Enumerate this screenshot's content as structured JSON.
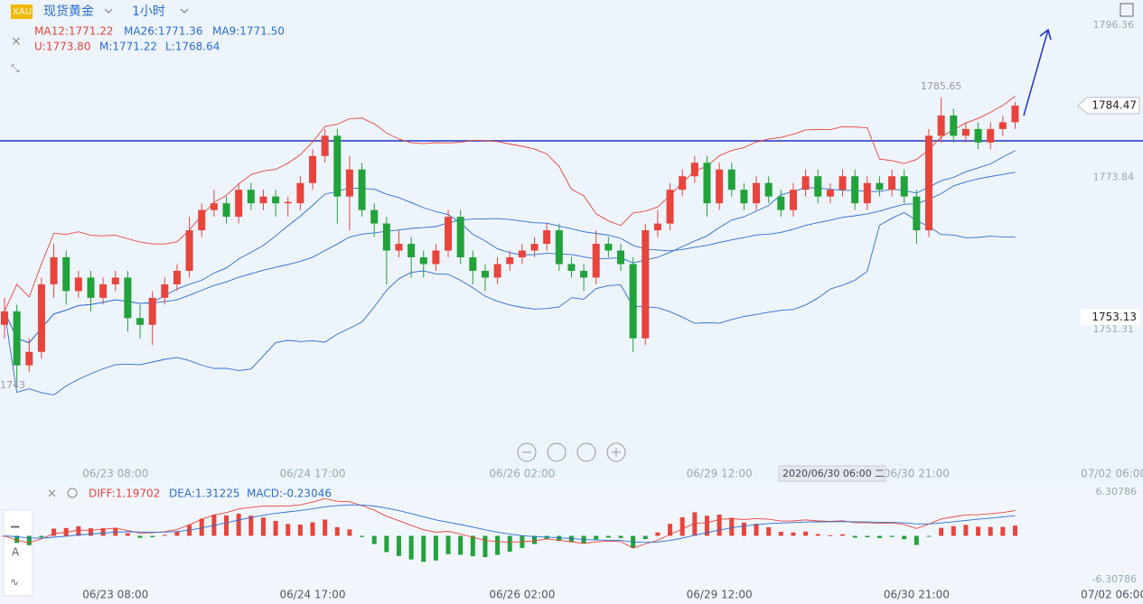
{
  "chart_data": {
    "type": "candlestick",
    "symbol": "XAU",
    "title": "现货黄金",
    "period": "1小时",
    "legend_ma": [
      "MA12:1771.22",
      "MA26:1771.36",
      "MA9:1771.50"
    ],
    "legend_boll": [
      "U:1773.80",
      "M:1771.22",
      "L:1768.64"
    ],
    "macd_legend": [
      "DIFF:1.19702",
      "DEA:1.31225",
      "MACD:-0.23046"
    ],
    "up_color": "#e8443c",
    "down_color": "#21a23a",
    "ylim": [
      1731.25,
      1800.1
    ],
    "yticks": [
      1796.36,
      1773.84,
      1751.31
    ],
    "high_label": 1785.65,
    "low_label": 1743,
    "last_price": 1784.47,
    "cursor_price": 1753.13,
    "cursor_time": "2020/06/30 06:00 二",
    "macd_ylim": [
      -6.30786,
      6.30786
    ],
    "macd_yticks": [
      6.30786,
      -6.30786
    ],
    "categories": [
      null,
      null,
      null,
      null,
      null,
      null,
      null,
      null,
      null,
      "06/23 08:00",
      null,
      null,
      null,
      null,
      null,
      null,
      null,
      null,
      null,
      null,
      null,
      null,
      null,
      null,
      null,
      "06/24 17:00",
      null,
      null,
      null,
      null,
      null,
      null,
      null,
      null,
      null,
      null,
      null,
      null,
      null,
      null,
      null,
      null,
      "06/26 02:00",
      null,
      null,
      null,
      null,
      null,
      null,
      null,
      null,
      null,
      null,
      null,
      null,
      null,
      null,
      null,
      "06/29 12:00",
      null,
      null,
      null,
      null,
      null,
      null,
      null,
      null,
      null,
      null,
      null,
      null,
      null,
      null,
      null,
      "06/30 21:00",
      null,
      null,
      null,
      null,
      null,
      null,
      null,
      null,
      null,
      null,
      null,
      null,
      null,
      null,
      null,
      "07/02 06:00"
    ],
    "candles": [
      [
        1752,
        1756,
        1750,
        1754
      ],
      [
        1754,
        1755,
        1743,
        1746
      ],
      [
        1746,
        1750,
        1745,
        1748
      ],
      [
        1748,
        1759,
        1747,
        1758
      ],
      [
        1758,
        1764,
        1756,
        1762
      ],
      [
        1762,
        1763,
        1755,
        1757
      ],
      [
        1757,
        1760,
        1756,
        1759
      ],
      [
        1759,
        1760,
        1754,
        1756
      ],
      [
        1756,
        1759,
        1755,
        1758
      ],
      [
        1758,
        1760,
        1757,
        1759
      ],
      [
        1759,
        1760,
        1751,
        1753
      ],
      [
        1753,
        1755,
        1750,
        1752
      ],
      [
        1752,
        1757,
        1749,
        1756
      ],
      [
        1756,
        1759,
        1755,
        1758
      ],
      [
        1758,
        1761,
        1757,
        1760
      ],
      [
        1760,
        1768,
        1759,
        1766
      ],
      [
        1766,
        1770,
        1765,
        1769
      ],
      [
        1769,
        1772,
        1768,
        1770
      ],
      [
        1770,
        1771,
        1767,
        1768
      ],
      [
        1768,
        1773,
        1767,
        1772
      ],
      [
        1772,
        1773,
        1769,
        1770
      ],
      [
        1770,
        1772,
        1769,
        1771
      ],
      [
        1771,
        1772,
        1768,
        1770
      ],
      [
        1770,
        1771,
        1768,
        1770.2
      ],
      [
        1770,
        1774,
        1769,
        1773
      ],
      [
        1773,
        1778,
        1772,
        1777
      ],
      [
        1777,
        1781,
        1776,
        1780
      ],
      [
        1780,
        1781,
        1767,
        1771
      ],
      [
        1771,
        1777,
        1766,
        1775
      ],
      [
        1775,
        1776,
        1768,
        1769
      ],
      [
        1769,
        1770,
        1765,
        1767
      ],
      [
        1767,
        1768,
        1758,
        1763
      ],
      [
        1763,
        1766,
        1762,
        1764
      ],
      [
        1764,
        1765,
        1759,
        1762
      ],
      [
        1762,
        1763,
        1759,
        1761
      ],
      [
        1761,
        1764,
        1760,
        1763
      ],
      [
        1763,
        1769,
        1762,
        1768
      ],
      [
        1768,
        1769,
        1761,
        1762
      ],
      [
        1762,
        1763,
        1758,
        1760
      ],
      [
        1760,
        1761,
        1757,
        1759
      ],
      [
        1759,
        1762,
        1758,
        1761
      ],
      [
        1761,
        1763,
        1760,
        1762
      ],
      [
        1762,
        1764,
        1761,
        1763
      ],
      [
        1763,
        1765,
        1762,
        1764
      ],
      [
        1764,
        1767,
        1763,
        1766
      ],
      [
        1766,
        1767,
        1760,
        1761
      ],
      [
        1761,
        1762,
        1759,
        1760
      ],
      [
        1760,
        1761,
        1757,
        1759
      ],
      [
        1759,
        1766,
        1758,
        1764
      ],
      [
        1764,
        1765,
        1762,
        1763
      ],
      [
        1763,
        1764,
        1760,
        1761
      ],
      [
        1761,
        1762,
        1748,
        1750
      ],
      [
        1750,
        1767,
        1749,
        1766
      ],
      [
        1766,
        1769,
        1765,
        1767
      ],
      [
        1767,
        1773,
        1766,
        1772
      ],
      [
        1772,
        1775,
        1771,
        1774
      ],
      [
        1774,
        1777,
        1773,
        1776
      ],
      [
        1776,
        1777,
        1768,
        1770
      ],
      [
        1770,
        1776,
        1769,
        1775
      ],
      [
        1775,
        1776,
        1771,
        1772
      ],
      [
        1772,
        1773,
        1769,
        1770
      ],
      [
        1770,
        1774,
        1769,
        1773
      ],
      [
        1773,
        1774,
        1770,
        1771
      ],
      [
        1771,
        1772,
        1768,
        1769
      ],
      [
        1769,
        1773,
        1768,
        1772
      ],
      [
        1772,
        1775,
        1771,
        1774
      ],
      [
        1774,
        1775,
        1770,
        1771
      ],
      [
        1771,
        1773,
        1770,
        1772
      ],
      [
        1772,
        1775,
        1771,
        1774
      ],
      [
        1774,
        1775,
        1769,
        1770
      ],
      [
        1770,
        1774,
        1769,
        1773
      ],
      [
        1773,
        1774,
        1771,
        1772
      ],
      [
        1772,
        1775,
        1771,
        1774
      ],
      [
        1774,
        1775,
        1770,
        1771
      ],
      [
        1771,
        1772,
        1764,
        1766
      ],
      [
        1766,
        1781,
        1765,
        1780
      ],
      [
        1780,
        1785.65,
        1779,
        1783
      ],
      [
        1783,
        1784,
        1779,
        1780
      ],
      [
        1780,
        1782,
        1779,
        1781
      ],
      [
        1781,
        1782,
        1778,
        1779
      ],
      [
        1779,
        1782,
        1778,
        1781
      ],
      [
        1781,
        1783,
        1780,
        1782
      ],
      [
        1782,
        1785,
        1781,
        1784.47
      ],
      null,
      null,
      null,
      null,
      null,
      null,
      null,
      null,
      null
    ]
  }
}
